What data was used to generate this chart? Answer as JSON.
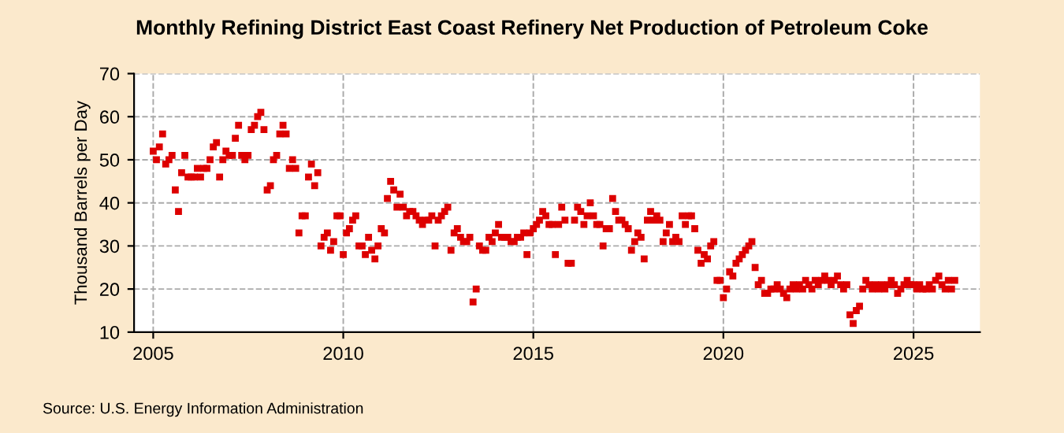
{
  "chart_data": {
    "type": "scatter",
    "title": "Monthly Refining District East Coast Refinery Net Production of Petroleum Coke",
    "ylabel": "Thousand Barrels per Day",
    "x": [
      "2005-01",
      "2005-02",
      "2005-03",
      "2005-04",
      "2005-05",
      "2005-06",
      "2005-07",
      "2005-08",
      "2005-09",
      "2005-10",
      "2005-11",
      "2005-12",
      "2006-01",
      "2006-02",
      "2006-03",
      "2006-04",
      "2006-05",
      "2006-06",
      "2006-07",
      "2006-08",
      "2006-09",
      "2006-10",
      "2006-11",
      "2006-12",
      "2007-01",
      "2007-02",
      "2007-03",
      "2007-04",
      "2007-05",
      "2007-06",
      "2007-07",
      "2007-08",
      "2007-09",
      "2007-10",
      "2007-11",
      "2007-12",
      "2008-01",
      "2008-02",
      "2008-03",
      "2008-04",
      "2008-05",
      "2008-06",
      "2008-07",
      "2008-08",
      "2008-09",
      "2008-10",
      "2008-11",
      "2008-12",
      "2009-01",
      "2009-02",
      "2009-03",
      "2009-04",
      "2009-05",
      "2009-06",
      "2009-07",
      "2009-08",
      "2009-09",
      "2009-10",
      "2009-11",
      "2009-12",
      "2010-01",
      "2010-02",
      "2010-03",
      "2010-04",
      "2010-05",
      "2010-06",
      "2010-07",
      "2010-08",
      "2010-09",
      "2010-10",
      "2010-11",
      "2010-12",
      "2011-01",
      "2011-02",
      "2011-03",
      "2011-04",
      "2011-05",
      "2011-06",
      "2011-07",
      "2011-08",
      "2011-09",
      "2011-10",
      "2011-11",
      "2011-12",
      "2012-01",
      "2012-02",
      "2012-03",
      "2012-04",
      "2012-05",
      "2012-06",
      "2012-07",
      "2012-08",
      "2012-09",
      "2012-10",
      "2012-11",
      "2012-12",
      "2013-01",
      "2013-02",
      "2013-03",
      "2013-04",
      "2013-05",
      "2013-06",
      "2013-07",
      "2013-08",
      "2013-09",
      "2013-10",
      "2013-11",
      "2013-12",
      "2014-01",
      "2014-02",
      "2014-03",
      "2014-04",
      "2014-05",
      "2014-06",
      "2014-07",
      "2014-08",
      "2014-09",
      "2014-10",
      "2014-11",
      "2014-12",
      "2015-01",
      "2015-02",
      "2015-03",
      "2015-04",
      "2015-05",
      "2015-06",
      "2015-07",
      "2015-08",
      "2015-09",
      "2015-10",
      "2015-11",
      "2015-12",
      "2016-01",
      "2016-02",
      "2016-03",
      "2016-04",
      "2016-05",
      "2016-06",
      "2016-07",
      "2016-08",
      "2016-09",
      "2016-10",
      "2016-11",
      "2016-12",
      "2017-01",
      "2017-02",
      "2017-03",
      "2017-04",
      "2017-05",
      "2017-06",
      "2017-07",
      "2017-08",
      "2017-09",
      "2017-10",
      "2017-11",
      "2017-12",
      "2018-01",
      "2018-02",
      "2018-03",
      "2018-04",
      "2018-05",
      "2018-06",
      "2018-07",
      "2018-08",
      "2018-09",
      "2018-10",
      "2018-11",
      "2018-12",
      "2019-01",
      "2019-02",
      "2019-03",
      "2019-04",
      "2019-05",
      "2019-06",
      "2019-07",
      "2019-08",
      "2019-09",
      "2019-10",
      "2019-11",
      "2019-12",
      "2020-01",
      "2020-02",
      "2020-03",
      "2020-04",
      "2020-05",
      "2020-06",
      "2020-07",
      "2020-08",
      "2020-09",
      "2020-10",
      "2020-11",
      "2020-12",
      "2021-01",
      "2021-02",
      "2021-03",
      "2021-04",
      "2021-05",
      "2021-06",
      "2021-07",
      "2021-08",
      "2021-09",
      "2021-10",
      "2021-11",
      "2021-12",
      "2022-01",
      "2022-02",
      "2022-03",
      "2022-04",
      "2022-05",
      "2022-06",
      "2022-07",
      "2022-08",
      "2022-09",
      "2022-10",
      "2022-11",
      "2022-12",
      "2023-01",
      "2023-02",
      "2023-03",
      "2023-04",
      "2023-05",
      "2023-06",
      "2023-07",
      "2023-08",
      "2023-09",
      "2023-10",
      "2023-11",
      "2023-12",
      "2024-01",
      "2024-02",
      "2024-03",
      "2024-04",
      "2024-05",
      "2024-06",
      "2024-07",
      "2024-08",
      "2024-09",
      "2024-10",
      "2024-11",
      "2024-12",
      "2025-01",
      "2025-02",
      "2025-03",
      "2025-04",
      "2025-05",
      "2025-06",
      "2025-07",
      "2025-08",
      "2025-09",
      "2025-10",
      "2025-11",
      "2025-12",
      "2026-01",
      "2026-02"
    ],
    "series": [
      {
        "color": "#dd0000",
        "values": [
          52,
          50,
          53,
          56,
          49,
          50,
          51,
          43,
          38,
          47,
          51,
          46,
          46,
          46,
          48,
          46,
          48,
          48,
          50,
          53,
          54,
          46,
          50,
          52,
          51,
          51,
          55,
          58,
          51,
          50,
          51,
          57,
          58,
          60,
          61,
          57,
          43,
          44,
          50,
          51,
          56,
          58,
          56,
          48,
          50,
          48,
          33,
          37,
          37,
          46,
          49,
          44,
          47,
          30,
          32,
          33,
          29,
          31,
          37,
          37,
          28,
          33,
          34,
          36,
          37,
          30,
          30,
          28,
          32,
          29,
          27,
          30,
          34,
          33,
          41,
          45,
          43,
          39,
          42,
          39,
          37,
          38,
          38,
          37,
          36,
          35,
          36,
          36,
          37,
          30,
          36,
          37,
          38,
          39,
          29,
          33,
          34,
          32,
          31,
          31,
          32,
          17,
          20,
          30,
          29,
          29,
          32,
          31,
          33,
          35,
          32,
          32,
          32,
          31,
          31,
          32,
          32,
          33,
          28,
          33,
          34,
          35,
          36,
          38,
          37,
          35,
          35,
          28,
          35,
          39,
          36,
          26,
          26,
          36,
          39,
          38,
          35,
          37,
          40,
          37,
          35,
          35,
          30,
          34,
          34,
          41,
          38,
          36,
          36,
          35,
          34,
          29,
          31,
          33,
          32,
          27,
          36,
          38,
          36,
          37,
          36,
          31,
          33,
          35,
          31,
          32,
          31,
          37,
          35,
          37,
          37,
          34,
          29,
          26,
          28,
          27,
          30,
          31,
          22,
          22,
          18,
          20,
          24,
          23,
          26,
          27,
          28,
          29,
          30,
          31,
          25,
          21,
          22,
          19,
          19,
          20,
          20,
          21,
          20,
          19,
          18,
          20,
          21,
          20,
          21,
          20,
          22,
          21,
          20,
          22,
          21,
          22,
          23,
          22,
          21,
          22,
          23,
          21,
          20,
          21,
          14,
          12,
          15,
          16,
          20,
          22,
          21,
          20,
          21,
          20,
          21,
          20,
          21,
          22,
          21,
          19,
          20,
          21,
          22,
          21,
          21,
          20,
          21,
          20,
          20,
          21,
          20,
          22,
          23,
          21,
          20,
          22,
          20,
          22
        ]
      }
    ],
    "marker": "square",
    "xlim": [
      "2004-07",
      "2026-10"
    ],
    "xticks": [
      {
        "value": "2005",
        "label": "2005"
      },
      {
        "value": "2010",
        "label": "2010"
      },
      {
        "value": "2015",
        "label": "2015"
      },
      {
        "value": "2020",
        "label": "2020"
      },
      {
        "value": "2025",
        "label": "2025"
      }
    ],
    "ylim": [
      10,
      70
    ],
    "yticks": [
      10,
      20,
      30,
      40,
      50,
      60,
      70
    ],
    "grid": true,
    "annotations": [
      "Source: U.S. Energy Information Administration"
    ]
  }
}
